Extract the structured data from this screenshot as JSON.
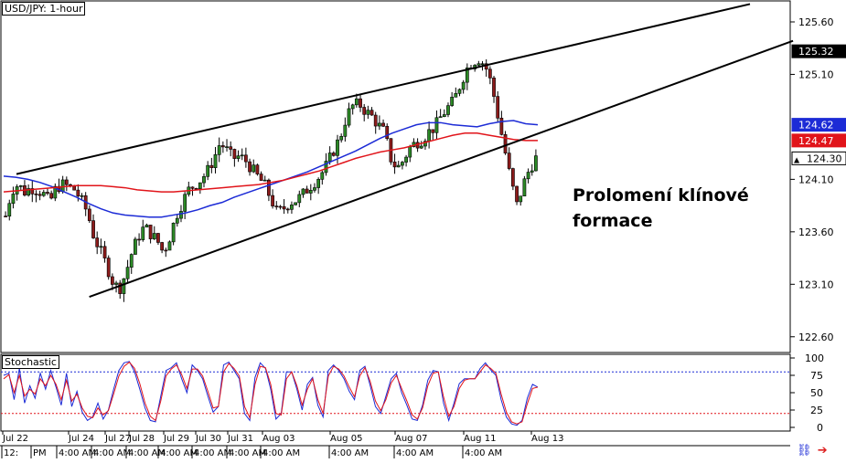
{
  "chart": {
    "symbol_label": "USD/JPY: 1-hour",
    "indicator_label": "Stochastic",
    "annotation_line1": "Prolomení klínové",
    "annotation_line2": "formace"
  },
  "chart_data": [
    {
      "type": "candlestick",
      "title": "USD/JPY: 1-hour",
      "xlabel": "",
      "ylabel": "",
      "ylim": [
        122.45,
        125.8
      ],
      "y_ticks": [
        "125.60",
        "125.10",
        "124.10",
        "123.60",
        "123.10",
        "122.60"
      ],
      "x_tick_labels_top": [
        "Jul 22",
        "Jul 24",
        "Jul 27",
        "Jul 28",
        "Jul 29",
        "Jul 30",
        "Jul 31",
        "Aug 03",
        "Aug 05",
        "Aug 07",
        "Aug 11",
        "Aug 13"
      ],
      "x_tick_labels_bottom": [
        "12:",
        "PM",
        "4:00 AM",
        "4:00 AM",
        "4:00 AM",
        "4:00 AM",
        "4:00 AM",
        "4:00 AM",
        "4:00 AM",
        "4:00 AM",
        "4:00 AM",
        "4:00 AM"
      ],
      "price_badges": [
        {
          "value": "125.32",
          "color": "#000000"
        },
        {
          "value": "124.62",
          "color": "#1c2bd6"
        },
        {
          "value": "124.47",
          "color": "#e1141a"
        },
        {
          "value": "124.30",
          "color": "#ffffff",
          "marker": "▲"
        }
      ],
      "close_path": [
        123.75,
        124.0,
        124.05,
        123.98,
        124.02,
        124.0,
        123.96,
        123.88,
        124.02,
        124.05,
        124.03,
        124.0,
        123.9,
        123.78,
        123.55,
        123.42,
        123.28,
        123.12,
        123.05,
        123.2,
        123.4,
        123.55,
        123.65,
        123.58,
        123.52,
        123.4,
        123.55,
        123.75,
        123.88,
        124.0,
        124.05,
        124.1,
        124.18,
        124.3,
        124.45,
        124.38,
        124.3,
        124.32,
        124.28,
        124.2,
        124.12,
        124.05,
        123.92,
        123.78,
        123.82,
        123.88,
        123.9,
        123.95,
        124.02,
        124.08,
        124.15,
        124.25,
        124.38,
        124.5,
        124.7,
        124.8,
        124.82,
        124.75,
        124.7,
        124.62,
        124.55,
        124.3,
        124.2,
        124.28,
        124.4,
        124.45,
        124.48,
        124.55,
        124.6,
        124.7,
        124.78,
        124.85,
        125.0,
        125.15,
        125.22,
        125.25,
        125.18,
        125.0,
        124.7,
        124.4,
        124.1,
        123.85,
        124.05,
        124.2,
        124.3
      ],
      "wedge_lines": [
        {
          "x": [
            0,
            1.0
          ],
          "y": [
            124.15,
            125.77
          ]
        },
        {
          "x": [
            0.113,
            1.04
          ],
          "y": [
            122.98,
            125.42
          ]
        }
      ],
      "series": [
        {
          "name": "",
          "color": "#1c2bd6",
          "values": [
            124.13,
            124.12,
            124.1,
            124.07,
            124.03,
            123.98,
            123.93,
            123.87,
            123.82,
            123.78,
            123.76,
            123.75,
            123.74,
            123.74,
            123.76,
            123.78,
            123.81,
            123.85,
            123.88,
            123.93,
            123.97,
            124.01,
            124.05,
            124.09,
            124.13,
            124.17,
            124.22,
            124.27,
            124.32,
            124.37,
            124.43,
            124.49,
            124.54,
            124.58,
            124.62,
            124.64,
            124.64,
            124.62,
            124.61,
            124.6,
            124.63,
            124.65,
            124.66,
            124.63,
            124.62
          ]
        },
        {
          "name": "",
          "color": "#e1141a",
          "values": [
            123.98,
            123.99,
            124.0,
            124.01,
            124.02,
            124.03,
            124.04,
            124.04,
            124.04,
            124.03,
            124.02,
            124.0,
            123.99,
            123.98,
            123.98,
            123.99,
            124.0,
            124.01,
            124.02,
            124.03,
            124.04,
            124.05,
            124.07,
            124.09,
            124.12,
            124.15,
            124.18,
            124.22,
            124.26,
            124.3,
            124.33,
            124.36,
            124.38,
            124.4,
            124.43,
            124.46,
            124.49,
            124.52,
            124.54,
            124.54,
            124.52,
            124.5,
            124.48,
            124.47,
            124.47
          ]
        }
      ]
    },
    {
      "type": "line",
      "title": "Stochastic",
      "ylim": [
        0,
        100
      ],
      "y_ticks": [
        "100",
        "75",
        "50",
        "25",
        "0"
      ],
      "levels": [
        80,
        20
      ],
      "series": [
        {
          "name": "",
          "color": "#1c2bd6",
          "values": [
            75,
            78,
            40,
            85,
            35,
            60,
            42,
            78,
            55,
            82,
            58,
            32,
            78,
            30,
            52,
            22,
            10,
            15,
            35,
            12,
            25,
            55,
            82,
            93,
            95,
            80,
            55,
            28,
            10,
            8,
            45,
            82,
            86,
            93,
            70,
            50,
            90,
            82,
            70,
            45,
            22,
            30,
            90,
            94,
            82,
            70,
            20,
            10,
            72,
            93,
            85,
            55,
            12,
            20,
            80,
            80,
            55,
            25,
            62,
            72,
            32,
            15,
            82,
            90,
            82,
            70,
            52,
            40,
            82,
            88,
            60,
            30,
            20,
            45,
            70,
            78,
            50,
            32,
            12,
            10,
            32,
            68,
            82,
            80,
            35,
            10,
            35,
            63,
            70,
            70,
            70,
            85,
            93,
            83,
            75,
            40,
            15,
            5,
            3,
            10,
            42,
            62,
            58
          ]
        },
        {
          "name": "",
          "color": "#e1141a",
          "values": [
            70,
            76,
            50,
            75,
            45,
            55,
            48,
            70,
            60,
            75,
            62,
            40,
            68,
            38,
            48,
            28,
            16,
            14,
            28,
            18,
            24,
            48,
            74,
            88,
            94,
            85,
            63,
            35,
            16,
            10,
            38,
            74,
            84,
            90,
            76,
            56,
            84,
            84,
            74,
            52,
            28,
            30,
            80,
            92,
            85,
            74,
            30,
            14,
            62,
            88,
            86,
            62,
            20,
            18,
            70,
            80,
            60,
            32,
            55,
            70,
            40,
            20,
            74,
            88,
            84,
            74,
            58,
            44,
            74,
            86,
            66,
            38,
            24,
            40,
            64,
            75,
            56,
            38,
            18,
            12,
            28,
            60,
            78,
            80,
            44,
            16,
            30,
            56,
            68,
            70,
            70,
            80,
            90,
            85,
            78,
            48,
            22,
            8,
            5,
            8,
            34,
            56,
            58
          ]
        }
      ]
    }
  ]
}
